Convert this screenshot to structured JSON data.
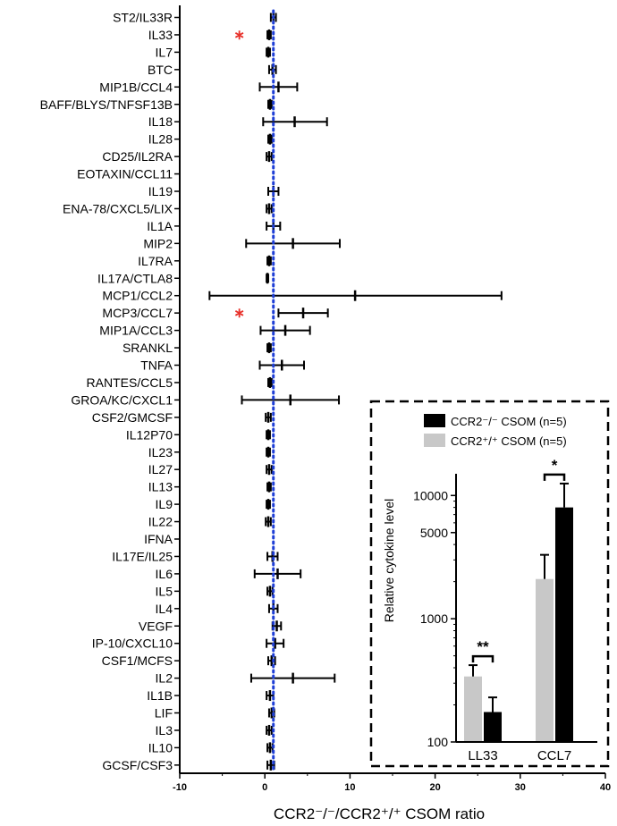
{
  "chart_data": [
    {
      "type": "scatter",
      "subtype": "forest-plot",
      "title": "",
      "xlabel": "CCR2⁻/⁻/CCR2⁺/⁺ CSOM ratio",
      "ylabel": "",
      "xlim": [
        -10,
        40
      ],
      "xticks": [
        "-10",
        "0",
        "10",
        "20",
        "30",
        "40"
      ],
      "reference_line": 1,
      "reference_line_style": "blue dotted",
      "marked_color": "#e8322b",
      "categories": [
        "ST2/IL33R",
        "IL33",
        "IL7",
        "BTC",
        "MIP1B/CCL4",
        "BAFF/BLYS/TNFSF13B",
        "IL18",
        "IL28",
        "CD25/IL2RA",
        "EOTAXIN/CCL11",
        "IL19",
        "ENA-78/CXCL5/LIX",
        "IL1A",
        "MIP2",
        "IL7RA",
        "IL17A/CTLA8",
        "MCP1/CCL2",
        "MCP3/CCL7",
        "MIP1A/CCL3",
        "SRANKL",
        "TNFA",
        "RANTES/CCL5",
        "GROA/KC/CXCL1",
        "CSF2/GMCSF",
        "IL12P70",
        "IL23",
        "IL27",
        "IL13",
        "IL9",
        "IL22",
        "IFNA",
        "IL17E/IL25",
        "IL6",
        "IL5",
        "IL4",
        "VEGF",
        "IP-10/CXCL10",
        "CSF1/MCFS",
        "IL2",
        "IL1B",
        "LIF",
        "IL3",
        "IL10",
        "GCSF/CSF3"
      ],
      "points": [
        {
          "mean": 1.0,
          "lo": 0.7,
          "hi": 1.3
        },
        {
          "mean": 0.5,
          "lo": 0.3,
          "hi": 0.7,
          "marked": true
        },
        {
          "mean": 0.4,
          "lo": 0.2,
          "hi": 0.6
        },
        {
          "mean": 0.9,
          "lo": 0.5,
          "hi": 1.3
        },
        {
          "mean": 1.6,
          "lo": -0.6,
          "hi": 3.8
        },
        {
          "mean": 0.6,
          "lo": 0.4,
          "hi": 0.8
        },
        {
          "mean": 3.5,
          "lo": -0.2,
          "hi": 7.3
        },
        {
          "mean": 0.6,
          "lo": 0.4,
          "hi": 0.8
        },
        {
          "mean": 0.5,
          "lo": 0.2,
          "hi": 0.8
        },
        {
          "mean": null,
          "lo": null,
          "hi": null
        },
        {
          "mean": 1.0,
          "lo": 0.4,
          "hi": 1.6
        },
        {
          "mean": 0.5,
          "lo": 0.2,
          "hi": 0.8
        },
        {
          "mean": 1.0,
          "lo": 0.2,
          "hi": 1.8
        },
        {
          "mean": 3.3,
          "lo": -2.2,
          "hi": 8.8
        },
        {
          "mean": 0.5,
          "lo": 0.3,
          "hi": 0.7
        },
        {
          "mean": 0.3,
          "lo": 0.2,
          "hi": 0.4
        },
        {
          "mean": 10.6,
          "lo": -6.5,
          "hi": 27.8
        },
        {
          "mean": 4.5,
          "lo": 1.6,
          "hi": 7.4,
          "marked": true
        },
        {
          "mean": 2.4,
          "lo": -0.5,
          "hi": 5.3
        },
        {
          "mean": 0.5,
          "lo": 0.3,
          "hi": 0.7
        },
        {
          "mean": 2.0,
          "lo": -0.6,
          "hi": 4.6
        },
        {
          "mean": 0.6,
          "lo": 0.4,
          "hi": 0.8
        },
        {
          "mean": 3.0,
          "lo": -2.7,
          "hi": 8.7
        },
        {
          "mean": 0.4,
          "lo": 0.1,
          "hi": 0.7
        },
        {
          "mean": 0.4,
          "lo": 0.2,
          "hi": 0.6
        },
        {
          "mean": 0.4,
          "lo": 0.2,
          "hi": 0.6
        },
        {
          "mean": 0.5,
          "lo": 0.2,
          "hi": 0.8
        },
        {
          "mean": 0.5,
          "lo": 0.3,
          "hi": 0.7
        },
        {
          "mean": 0.4,
          "lo": 0.2,
          "hi": 0.6
        },
        {
          "mean": 0.4,
          "lo": 0.1,
          "hi": 0.7
        },
        {
          "mean": null,
          "lo": null,
          "hi": null
        },
        {
          "mean": 0.9,
          "lo": 0.3,
          "hi": 1.5
        },
        {
          "mean": 1.5,
          "lo": -1.2,
          "hi": 4.2
        },
        {
          "mean": 0.6,
          "lo": 0.3,
          "hi": 0.9
        },
        {
          "mean": 1.0,
          "lo": 0.5,
          "hi": 1.5
        },
        {
          "mean": 1.4,
          "lo": 0.9,
          "hi": 1.9
        },
        {
          "mean": 1.2,
          "lo": 0.2,
          "hi": 2.2
        },
        {
          "mean": 0.8,
          "lo": 0.4,
          "hi": 1.2
        },
        {
          "mean": 3.3,
          "lo": -1.6,
          "hi": 8.2
        },
        {
          "mean": 0.6,
          "lo": 0.2,
          "hi": 1.0
        },
        {
          "mean": 0.8,
          "lo": 0.5,
          "hi": 1.1
        },
        {
          "mean": 0.5,
          "lo": 0.2,
          "hi": 0.8
        },
        {
          "mean": 0.6,
          "lo": 0.3,
          "hi": 0.9
        },
        {
          "mean": 0.7,
          "lo": 0.3,
          "hi": 1.1
        }
      ]
    },
    {
      "type": "bar",
      "title": "",
      "xlabel": "",
      "ylabel": "Relative cytokine level",
      "yscale": "log",
      "ylim": [
        100,
        15000
      ],
      "yticks": [
        "100",
        "1000",
        "5000",
        "10000"
      ],
      "categories": [
        "LL33",
        "CCL7"
      ],
      "series": [
        {
          "name": "CCR2⁺/⁺ CSOM (n=5)",
          "color": "#c8c8c8",
          "values": [
            340,
            2100
          ],
          "err_hi": [
            420,
            3300
          ]
        },
        {
          "name": "CCR2⁻/⁻ CSOM (n=5)",
          "color": "#000000",
          "values": [
            175,
            8000
          ],
          "err_hi": [
            230,
            12500
          ]
        }
      ],
      "legend_order": [
        1,
        0
      ],
      "legend_position": "top",
      "significance": [
        "**",
        "*"
      ]
    }
  ]
}
